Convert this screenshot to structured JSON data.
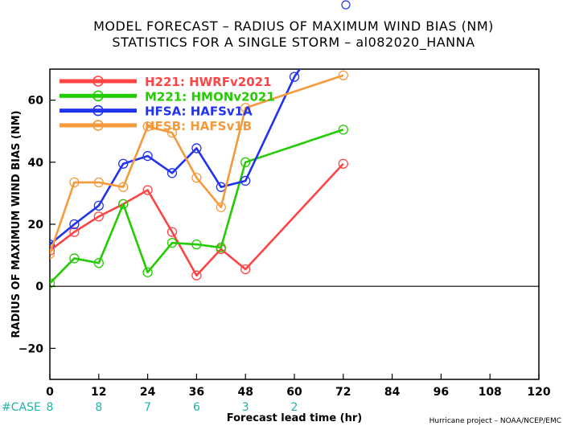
{
  "chart_data": {
    "type": "line",
    "title": "MODEL FORECAST – RADIUS OF MAXIMUM WIND BIAS (NM)",
    "subtitle": "STATISTICS FOR A SINGLE STORM – al082020_HANNA",
    "xlabel": "Forecast lead time (hr)",
    "ylabel": "RADIUS OF MAXIMUM WIND BIAS (NM)",
    "xlim": [
      0,
      120
    ],
    "ylim": [
      -30,
      70
    ],
    "xticks": [
      "0",
      "12",
      "24",
      "36",
      "48",
      "60",
      "72",
      "84",
      "96",
      "108",
      "120"
    ],
    "yticks": [
      "−20",
      "0",
      "20",
      "40",
      "60"
    ],
    "legend_position": "top-left",
    "colors": {
      "H221": "#ff4444",
      "M221": "#22cc00",
      "HFSA": "#2233ee",
      "HFSB": "#f59a3a",
      "case": "#20b2aa"
    },
    "series": [
      {
        "name": "H221: HWRFv2021",
        "id": "H221",
        "x": [
          0,
          6,
          12,
          18,
          24,
          30,
          36,
          42,
          48,
          72
        ],
        "y": [
          11.5,
          17.5,
          22.5,
          26.5,
          31.0,
          17.5,
          3.5,
          12.0,
          5.5,
          39.5
        ]
      },
      {
        "name": "M221: HMONv2021",
        "id": "M221",
        "x": [
          0,
          6,
          12,
          18,
          24,
          30,
          36,
          42,
          48,
          72
        ],
        "y": [
          1.0,
          9.0,
          7.5,
          26.5,
          4.5,
          14.0,
          13.5,
          12.5,
          40.0,
          50.5
        ]
      },
      {
        "name": "HFSA: HAFSv1A",
        "id": "HFSA",
        "x": [
          0,
          6,
          12,
          18,
          24,
          30,
          36,
          42,
          48,
          60,
          72
        ],
        "y": [
          13.5,
          20.0,
          26.0,
          39.5,
          42.0,
          36.5,
          44.5,
          32.0,
          34.0,
          67.5,
          90.0
        ]
      },
      {
        "name": "HFSB: HAFSv1B",
        "id": "HFSB",
        "x": [
          0,
          6,
          12,
          18,
          24,
          30,
          36,
          42,
          48,
          72
        ],
        "y": [
          10.5,
          33.5,
          33.5,
          32.0,
          51.5,
          49.5,
          35.0,
          25.5,
          57.5,
          68.0
        ]
      }
    ],
    "case_label": "#CASE",
    "case_x": [
      0,
      12,
      24,
      36,
      48,
      60
    ],
    "case_counts": [
      "8",
      "8",
      "7",
      "6",
      "3",
      "2"
    ],
    "footer": "Hurricane project – NOAA/NCEP/EMC"
  }
}
